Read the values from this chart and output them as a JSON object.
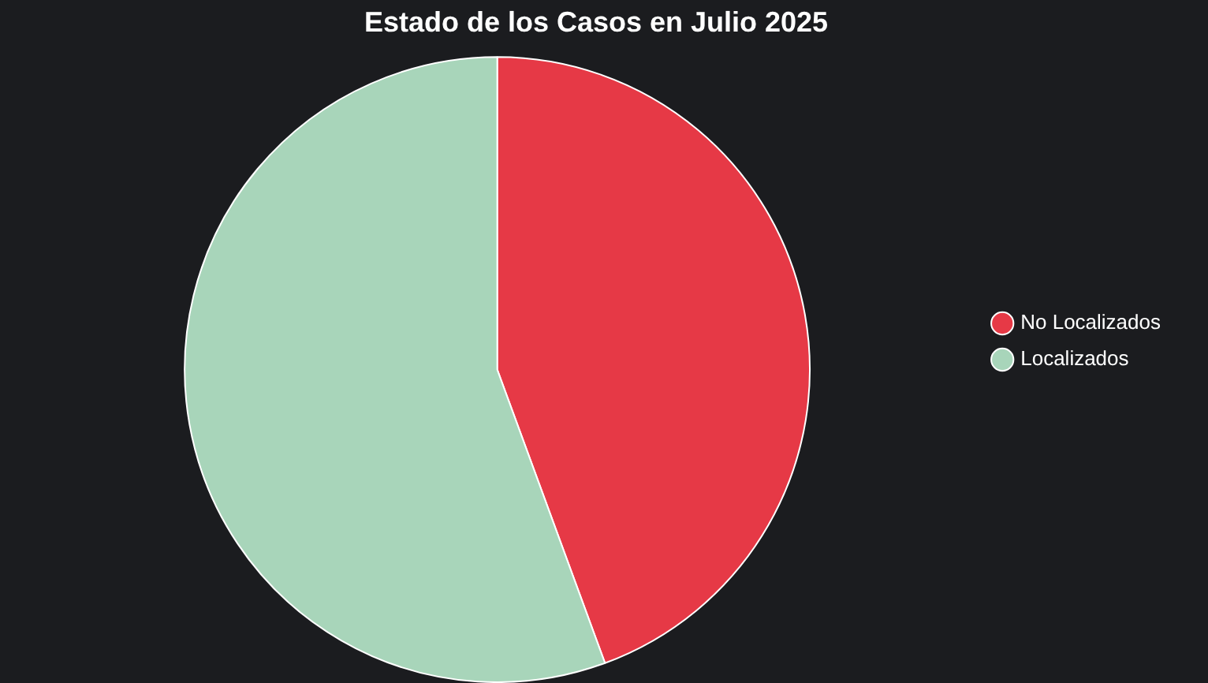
{
  "chart_data": {
    "type": "pie",
    "title": "Estado de los Casos en Julio 2025",
    "categories": [
      "No Localizados",
      "Localizados"
    ],
    "values": [
      44.4,
      55.6
    ],
    "colors": [
      "#e63946",
      "#a8d5ba"
    ],
    "legend": "right"
  }
}
